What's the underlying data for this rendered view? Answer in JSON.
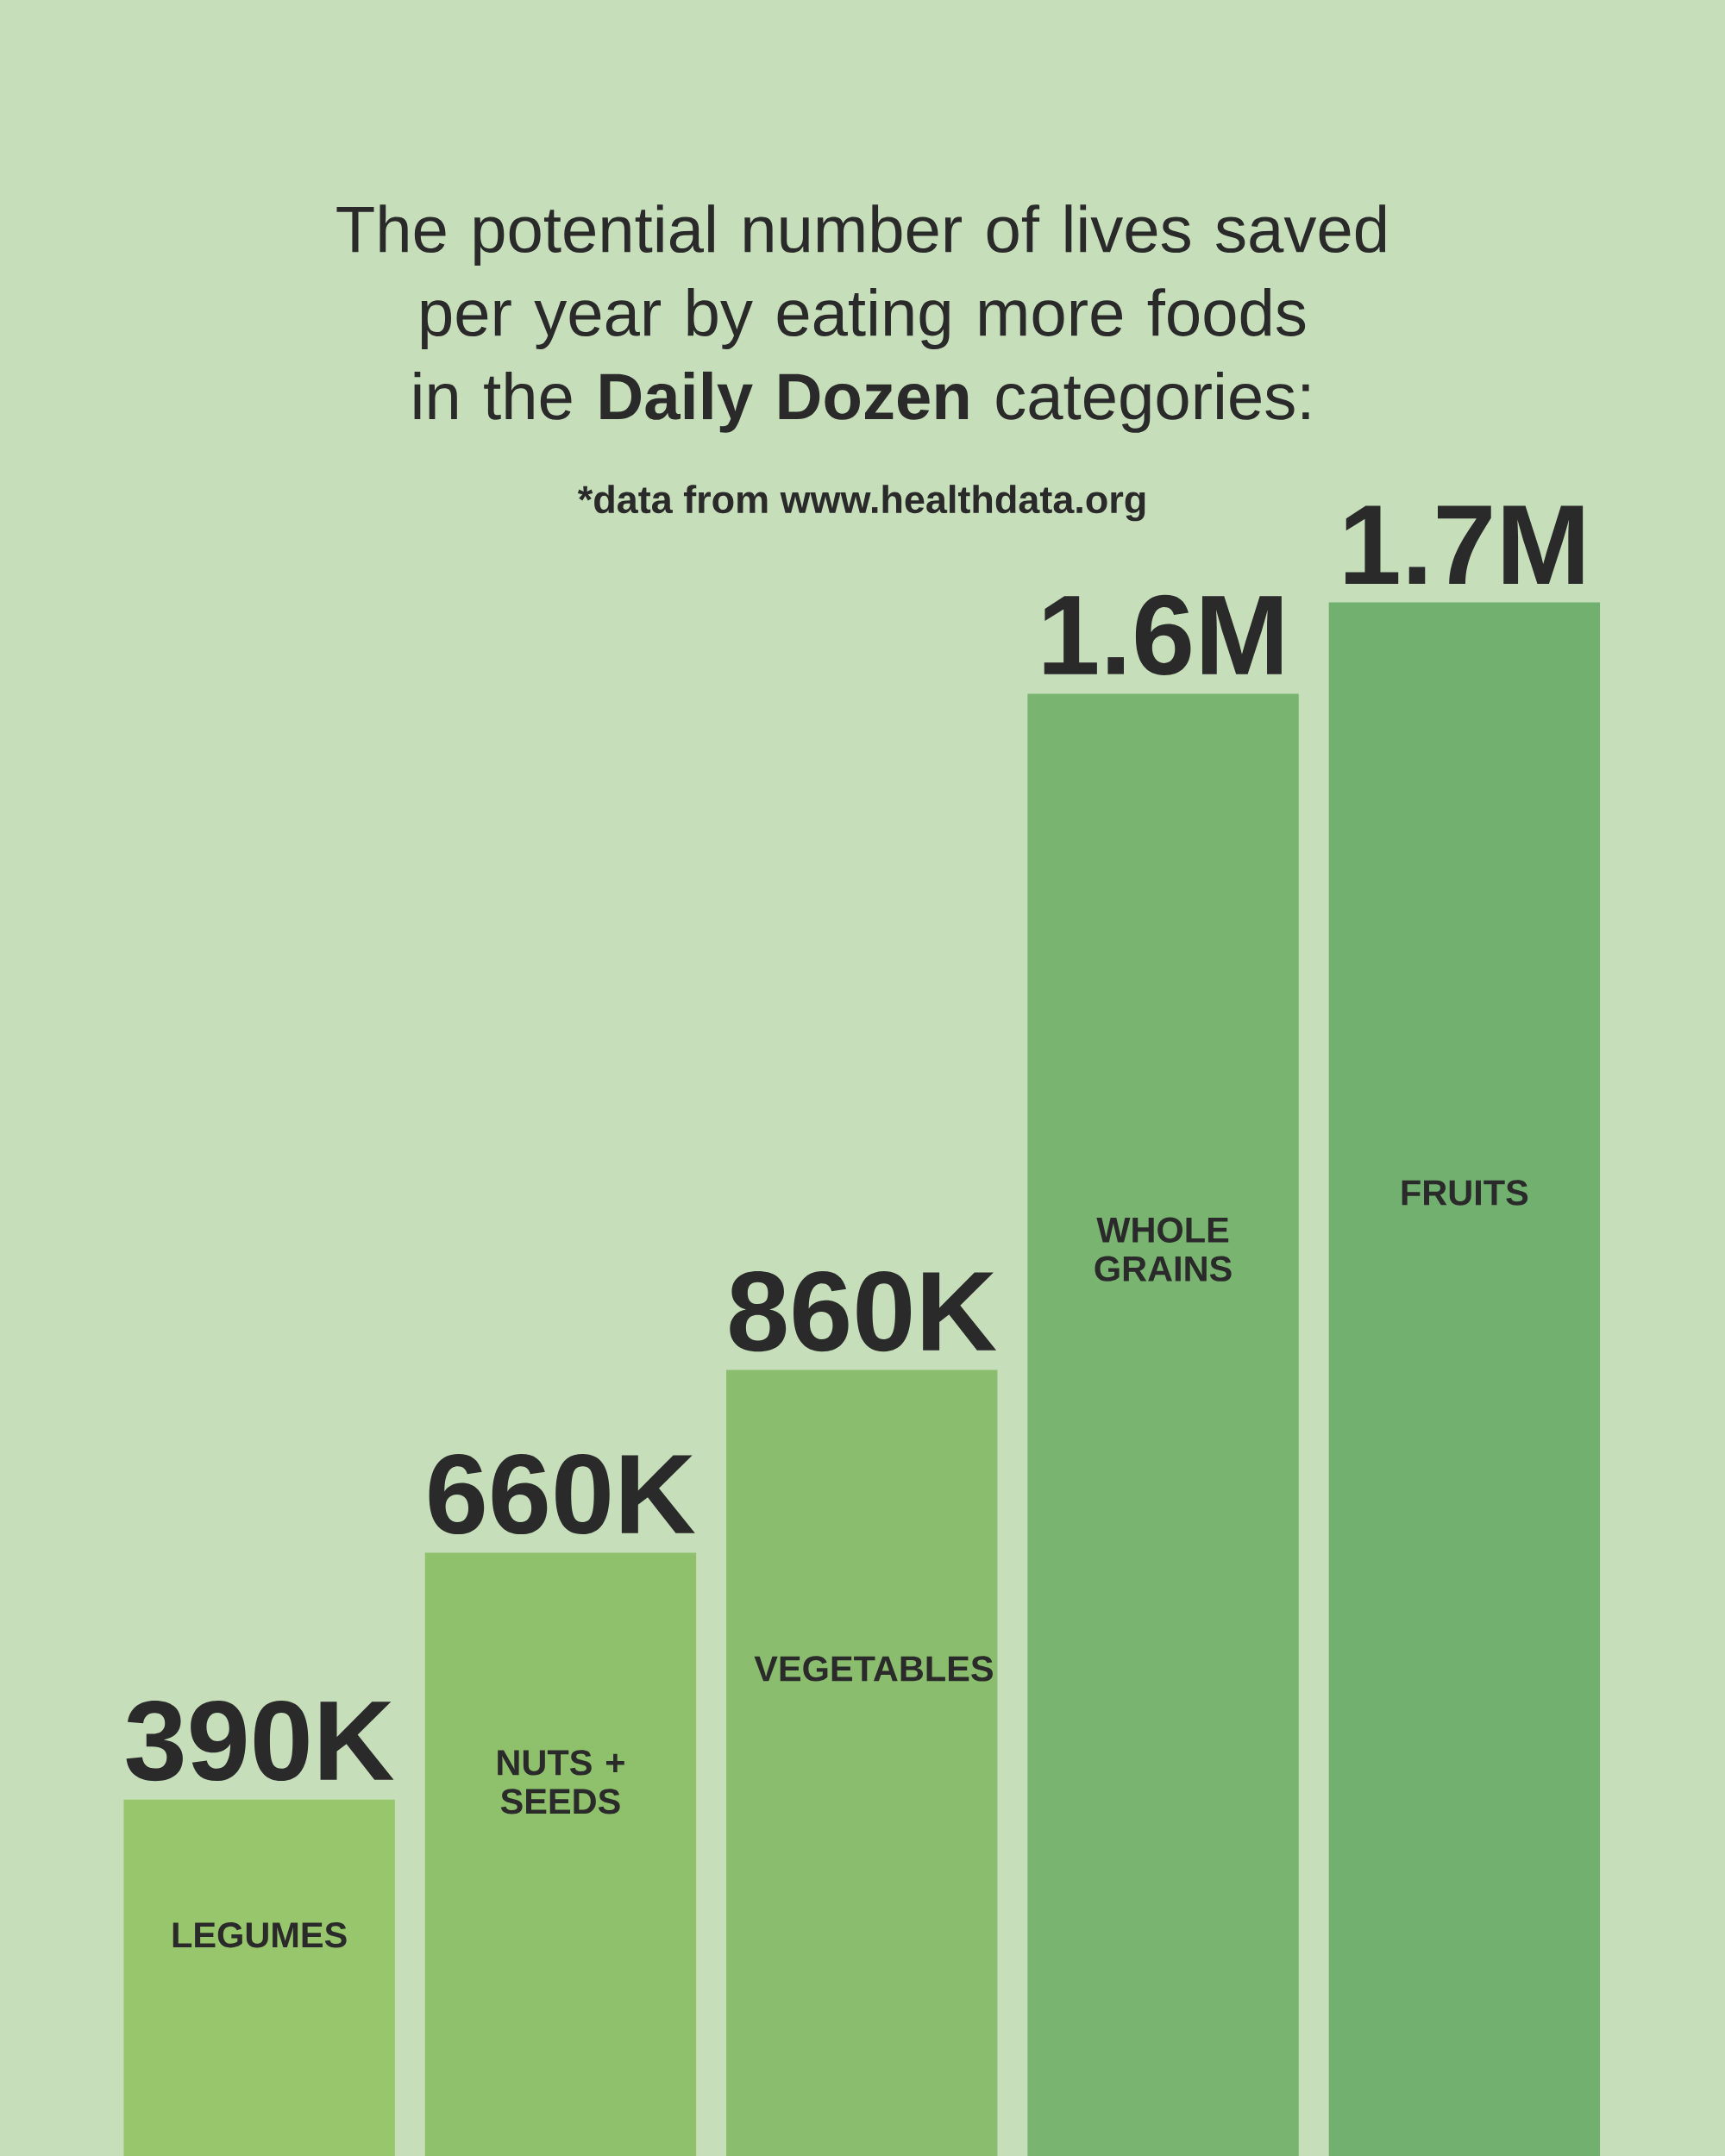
{
  "chart_data": {
    "type": "bar",
    "title": "The potential number of lives saved per year by eating more foods in the **Daily Dozen** categories:",
    "subtitle": "*data from www.healthdata.org",
    "categories": [
      "LEGUMES",
      "NUTS + SEEDS",
      "VEGETABLES",
      "WHOLE GRAINS",
      "FRUITS"
    ],
    "values": [
      390000,
      660000,
      860000,
      1600000,
      1700000
    ],
    "value_labels": [
      "390K",
      "660K",
      "860K",
      "1.6M",
      "1.7M"
    ],
    "colors": [
      "#98c66c",
      "#8fc06c",
      "#8bbd6e",
      "#79b470",
      "#72b070"
    ]
  }
}
